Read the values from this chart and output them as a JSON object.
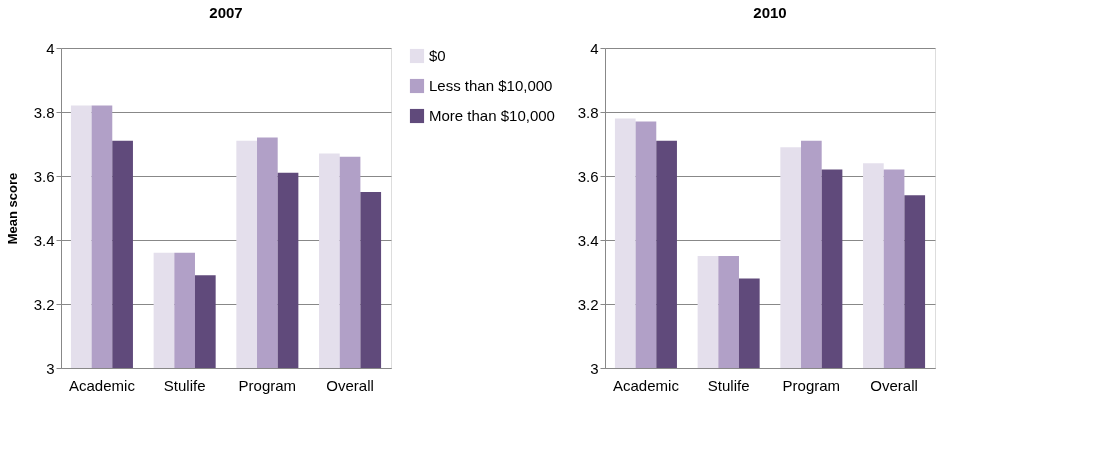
{
  "chart_data": [
    {
      "type": "bar",
      "title": "2007",
      "ylabel": "Mean score",
      "categories": [
        "Academic",
        "Stulife",
        "Program",
        "Overall"
      ],
      "series": [
        {
          "name": "$0",
          "color": "#e4dfec",
          "values": [
            3.82,
            3.36,
            3.71,
            3.67
          ]
        },
        {
          "name": "Less than $10,000",
          "color": "#b1a0c7",
          "values": [
            3.82,
            3.36,
            3.72,
            3.66
          ]
        },
        {
          "name": "More than $10,000",
          "color": "#604a7b",
          "values": [
            3.71,
            3.29,
            3.61,
            3.55
          ]
        }
      ],
      "ylim": [
        3,
        4
      ],
      "yticks": [
        3,
        3.2,
        3.4,
        3.6,
        3.8,
        4
      ],
      "grid": "y",
      "legend": "right"
    },
    {
      "type": "bar",
      "title": "2010",
      "categories": [
        "Academic",
        "Stulife",
        "Program",
        "Overall"
      ],
      "series": [
        {
          "color": "#e4dfec",
          "values": [
            3.78,
            3.35,
            3.69,
            3.64
          ]
        },
        {
          "color": "#b1a0c7",
          "values": [
            3.77,
            3.35,
            3.71,
            3.62
          ]
        },
        {
          "color": "#604a7b",
          "values": [
            3.71,
            3.28,
            3.62,
            3.54
          ]
        }
      ],
      "ylim": [
        3,
        4
      ],
      "yticks": [
        3,
        3.2,
        3.4,
        3.6,
        3.8,
        4
      ],
      "grid": "y"
    }
  ]
}
